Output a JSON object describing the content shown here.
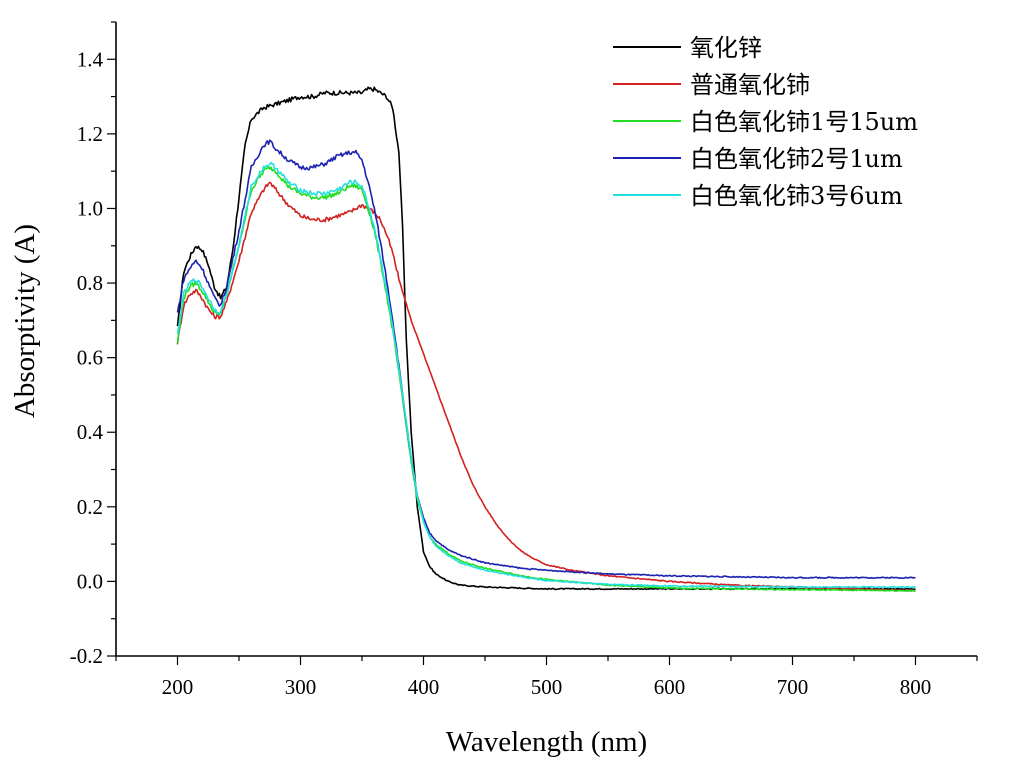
{
  "chart_data": {
    "type": "line",
    "title": "",
    "xlabel": "Wavelength (nm)",
    "ylabel": "Absorptivity (A)",
    "xlim": [
      150,
      850
    ],
    "ylim": [
      -0.2,
      1.5
    ],
    "xticks": [
      200,
      300,
      400,
      500,
      600,
      700,
      800
    ],
    "yticks": [
      -0.2,
      0.0,
      0.2,
      0.4,
      0.6,
      0.8,
      1.0,
      1.2,
      1.4
    ],
    "xtick_labels": [
      "200",
      "300",
      "400",
      "500",
      "600",
      "700",
      "800"
    ],
    "ytick_labels": [
      "-0.2",
      "0.0",
      "0.2",
      "0.4",
      "0.6",
      "0.8",
      "1.0",
      "1.2",
      "1.4"
    ],
    "grid": false,
    "legend_position": "top-right",
    "series": [
      {
        "name": "氧化锌",
        "color": "#000000",
        "x": [
          200,
          205,
          210,
          215,
          220,
          225,
          230,
          235,
          240,
          245,
          250,
          255,
          260,
          270,
          280,
          290,
          300,
          310,
          320,
          330,
          340,
          350,
          355,
          360,
          365,
          370,
          375,
          380,
          383,
          386,
          390,
          395,
          400,
          405,
          410,
          420,
          430,
          450,
          500,
          600,
          700,
          800
        ],
        "y": [
          0.68,
          0.83,
          0.87,
          0.9,
          0.89,
          0.85,
          0.79,
          0.76,
          0.79,
          0.89,
          1.03,
          1.17,
          1.24,
          1.27,
          1.28,
          1.29,
          1.3,
          1.3,
          1.31,
          1.31,
          1.31,
          1.31,
          1.32,
          1.32,
          1.31,
          1.3,
          1.27,
          1.15,
          0.95,
          0.65,
          0.4,
          0.2,
          0.08,
          0.04,
          0.02,
          0.0,
          -0.01,
          -0.015,
          -0.02,
          -0.02,
          -0.02,
          -0.02
        ]
      },
      {
        "name": "普通氧化铈",
        "color": "#d42020",
        "x": [
          200,
          205,
          210,
          215,
          220,
          225,
          230,
          235,
          240,
          250,
          260,
          270,
          275,
          280,
          290,
          300,
          310,
          320,
          330,
          340,
          350,
          355,
          360,
          365,
          370,
          375,
          380,
          390,
          400,
          410,
          420,
          430,
          440,
          450,
          460,
          470,
          480,
          490,
          500,
          520,
          550,
          600,
          650,
          700,
          750,
          800
        ],
        "y": [
          0.64,
          0.74,
          0.77,
          0.78,
          0.76,
          0.73,
          0.71,
          0.71,
          0.75,
          0.86,
          0.99,
          1.05,
          1.07,
          1.05,
          1.01,
          0.98,
          0.97,
          0.97,
          0.98,
          0.99,
          1.01,
          1.0,
          0.99,
          0.97,
          0.93,
          0.88,
          0.81,
          0.7,
          0.61,
          0.52,
          0.43,
          0.34,
          0.26,
          0.2,
          0.15,
          0.11,
          0.08,
          0.06,
          0.045,
          0.03,
          0.015,
          0.0,
          -0.01,
          -0.015,
          -0.02,
          -0.025
        ]
      },
      {
        "name": "白色氧化铈1号15um",
        "color": "#22dd22",
        "x": [
          200,
          205,
          210,
          215,
          220,
          225,
          230,
          235,
          240,
          250,
          260,
          270,
          275,
          280,
          290,
          300,
          310,
          320,
          330,
          340,
          345,
          350,
          355,
          360,
          365,
          370,
          375,
          380,
          385,
          390,
          395,
          400,
          405,
          410,
          420,
          430,
          450,
          480,
          500,
          550,
          600,
          700,
          800
        ],
        "y": [
          0.64,
          0.76,
          0.79,
          0.8,
          0.78,
          0.75,
          0.72,
          0.72,
          0.77,
          0.9,
          1.05,
          1.1,
          1.11,
          1.1,
          1.06,
          1.04,
          1.03,
          1.03,
          1.04,
          1.06,
          1.06,
          1.05,
          1.0,
          0.94,
          0.86,
          0.77,
          0.67,
          0.56,
          0.44,
          0.32,
          0.22,
          0.16,
          0.12,
          0.1,
          0.075,
          0.055,
          0.035,
          0.015,
          0.005,
          -0.01,
          -0.018,
          -0.022,
          -0.025
        ]
      },
      {
        "name": "白色氧化铈2号1um",
        "color": "#1c22b0",
        "x": [
          200,
          205,
          210,
          215,
          220,
          225,
          230,
          235,
          240,
          250,
          260,
          270,
          275,
          280,
          290,
          300,
          310,
          320,
          330,
          340,
          345,
          350,
          355,
          360,
          365,
          370,
          375,
          380,
          385,
          390,
          395,
          400,
          405,
          410,
          420,
          430,
          450,
          480,
          500,
          550,
          600,
          700,
          800
        ],
        "y": [
          0.72,
          0.81,
          0.84,
          0.86,
          0.84,
          0.8,
          0.76,
          0.74,
          0.79,
          0.94,
          1.11,
          1.17,
          1.18,
          1.16,
          1.13,
          1.11,
          1.11,
          1.12,
          1.14,
          1.15,
          1.15,
          1.13,
          1.07,
          1.0,
          0.91,
          0.81,
          0.7,
          0.58,
          0.45,
          0.33,
          0.23,
          0.17,
          0.13,
          0.11,
          0.085,
          0.07,
          0.05,
          0.035,
          0.03,
          0.02,
          0.015,
          0.01,
          0.01
        ]
      },
      {
        "name": "白色氧化铈3号6um",
        "color": "#22e0e0",
        "x": [
          200,
          205,
          210,
          215,
          220,
          225,
          230,
          235,
          240,
          250,
          260,
          270,
          275,
          280,
          290,
          300,
          310,
          320,
          330,
          340,
          345,
          350,
          355,
          360,
          365,
          370,
          375,
          380,
          385,
          390,
          395,
          400,
          405,
          410,
          420,
          430,
          450,
          480,
          500,
          550,
          600,
          700,
          800
        ],
        "y": [
          0.66,
          0.77,
          0.8,
          0.81,
          0.79,
          0.76,
          0.73,
          0.72,
          0.77,
          0.9,
          1.06,
          1.11,
          1.12,
          1.11,
          1.07,
          1.05,
          1.04,
          1.04,
          1.05,
          1.07,
          1.07,
          1.06,
          1.01,
          0.95,
          0.87,
          0.78,
          0.68,
          0.57,
          0.45,
          0.33,
          0.23,
          0.16,
          0.12,
          0.095,
          0.07,
          0.05,
          0.03,
          0.012,
          0.002,
          -0.008,
          -0.012,
          -0.015,
          -0.015
        ]
      }
    ]
  }
}
